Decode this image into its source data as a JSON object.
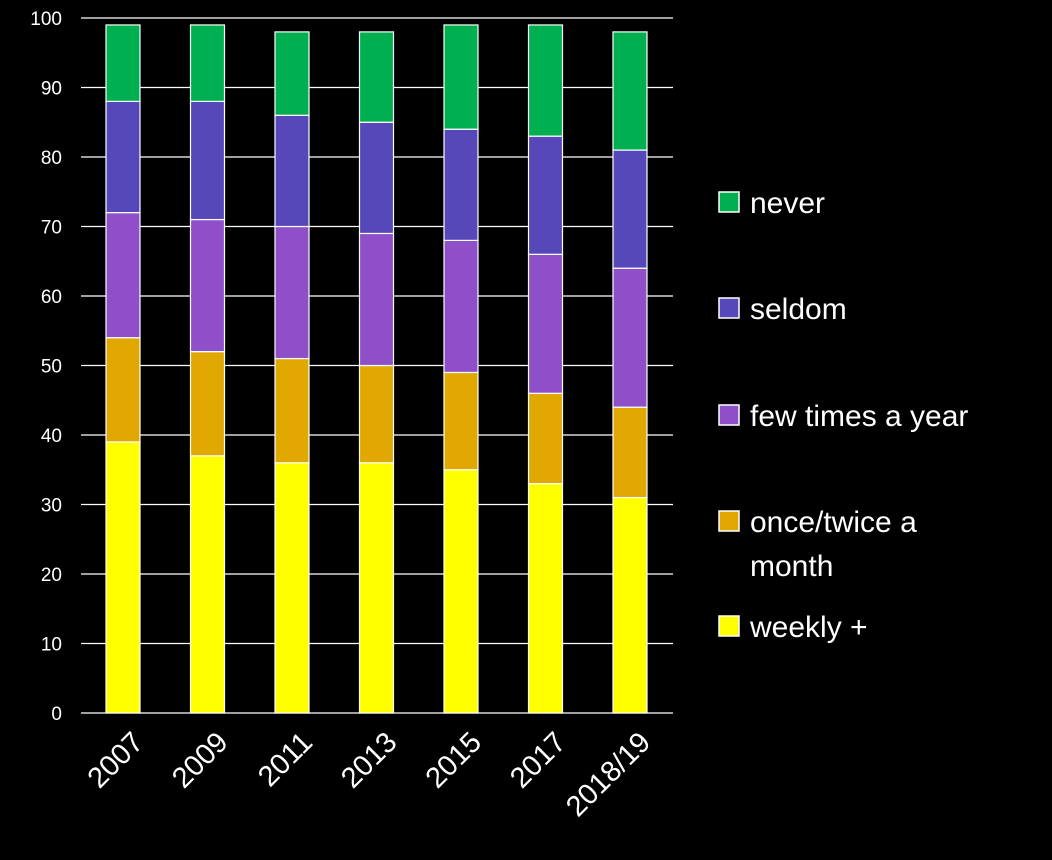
{
  "chart_data": {
    "type": "bar",
    "stacked": true,
    "categories": [
      "2007",
      "2009",
      "2011",
      "2013",
      "2015",
      "2017",
      "2018/19"
    ],
    "series": [
      {
        "name": "weekly +",
        "color": "#ffff00",
        "values": [
          39,
          37,
          36,
          36,
          35,
          33,
          31
        ]
      },
      {
        "name": "once/twice a month",
        "color": "#e0a800",
        "values": [
          15,
          15,
          15,
          14,
          14,
          13,
          13
        ]
      },
      {
        "name": "few times a year",
        "color": "#8e4fc8",
        "values": [
          18,
          19,
          19,
          19,
          19,
          20,
          20
        ]
      },
      {
        "name": "seldom",
        "color": "#5648b8",
        "values": [
          16,
          17,
          16,
          16,
          16,
          17,
          17
        ]
      },
      {
        "name": "never",
        "color": "#00b050",
        "values": [
          11,
          11,
          12,
          13,
          15,
          16,
          17
        ]
      }
    ],
    "title": "",
    "xlabel": "",
    "ylabel": "",
    "ylim": [
      0,
      100
    ],
    "yticks": [
      0,
      10,
      20,
      30,
      40,
      50,
      60,
      70,
      80,
      90,
      100
    ],
    "grid": true,
    "legend_position": "right",
    "legend_order": [
      "never",
      "seldom",
      "few times a year",
      "once/twice a month",
      "weekly +"
    ],
    "background": "#000000",
    "text_color": "#ffffff"
  }
}
